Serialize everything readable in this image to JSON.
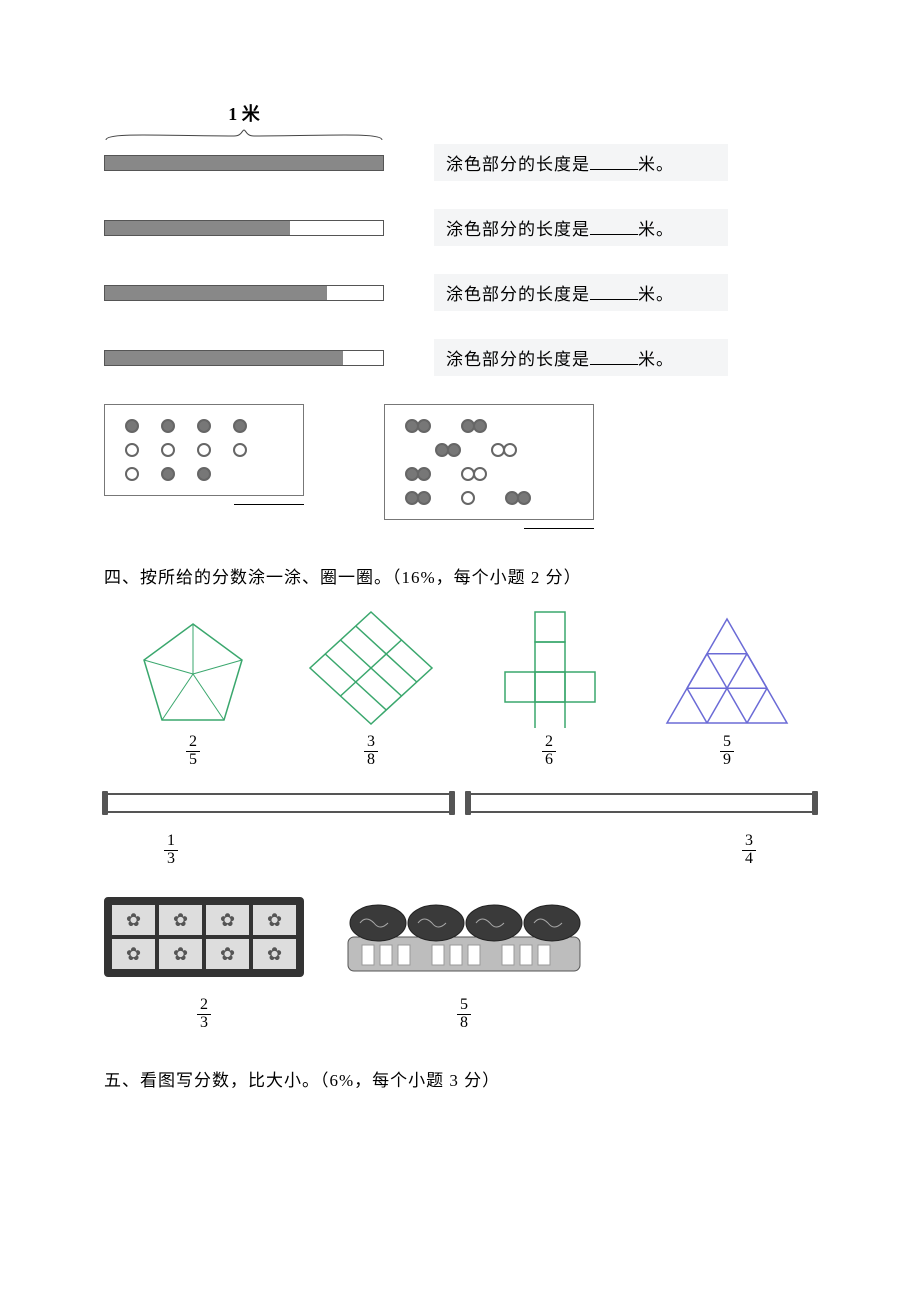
{
  "meter": {
    "label": "1 米"
  },
  "bars": {
    "text_prefix": "涂色部分的长度是",
    "text_suffix": "米。",
    "rows": [
      {
        "segments": 1,
        "filled": 1
      },
      {
        "segments": 3,
        "filled": 2
      },
      {
        "segments": 5,
        "filled": 4
      },
      {
        "segments": 7,
        "filled": 6
      }
    ],
    "bar_border_color": "#555555",
    "fill_color": "#888888",
    "text_bg": "#f4f5f6"
  },
  "dots": {
    "left": {
      "rows": [
        [
          "f",
          "f",
          "f",
          "f"
        ],
        [
          "o",
          "o",
          "o",
          "o"
        ],
        [
          "o",
          "f",
          "f"
        ]
      ]
    },
    "right": {
      "rows": [
        [
          [
            "f",
            "f"
          ],
          [
            "f",
            "f"
          ]
        ],
        [
          [
            "f",
            "f"
          ],
          [
            "o",
            "o"
          ]
        ],
        [
          [
            "f",
            "f"
          ],
          [
            "o",
            "o"
          ]
        ],
        [
          [
            "f",
            "f"
          ],
          [
            "o"
          ],
          [
            "f",
            "f"
          ]
        ]
      ],
      "indent_second_row": true
    }
  },
  "section4": {
    "title": "四、按所给的分数涂一涂、圈一圈。（16%，每个小题 2 分）",
    "shapes": [
      {
        "type": "pentagon5",
        "color": "#3aa76d",
        "fraction": [
          "2",
          "5"
        ]
      },
      {
        "type": "diamond8",
        "color": "#3aa76d",
        "fraction": [
          "3",
          "8"
        ]
      },
      {
        "type": "tetromino6",
        "color": "#3aa76d",
        "fraction": [
          "2",
          "6"
        ]
      },
      {
        "type": "triangle9",
        "color": "#6b6bd6",
        "fraction": [
          "5",
          "9"
        ]
      }
    ],
    "rulers": {
      "left_fraction": [
        "1",
        "3"
      ],
      "right_fraction": [
        "3",
        "4"
      ],
      "ruler_color": "#555555"
    },
    "tray_fraction": [
      "2",
      "3"
    ],
    "cake_fraction": [
      "5",
      "8"
    ]
  },
  "section5": {
    "title": "五、看图写分数，比大小。（6%，每个小题 3 分）"
  },
  "colors": {
    "text": "#000000",
    "grey": "#777777",
    "background": "#ffffff"
  }
}
